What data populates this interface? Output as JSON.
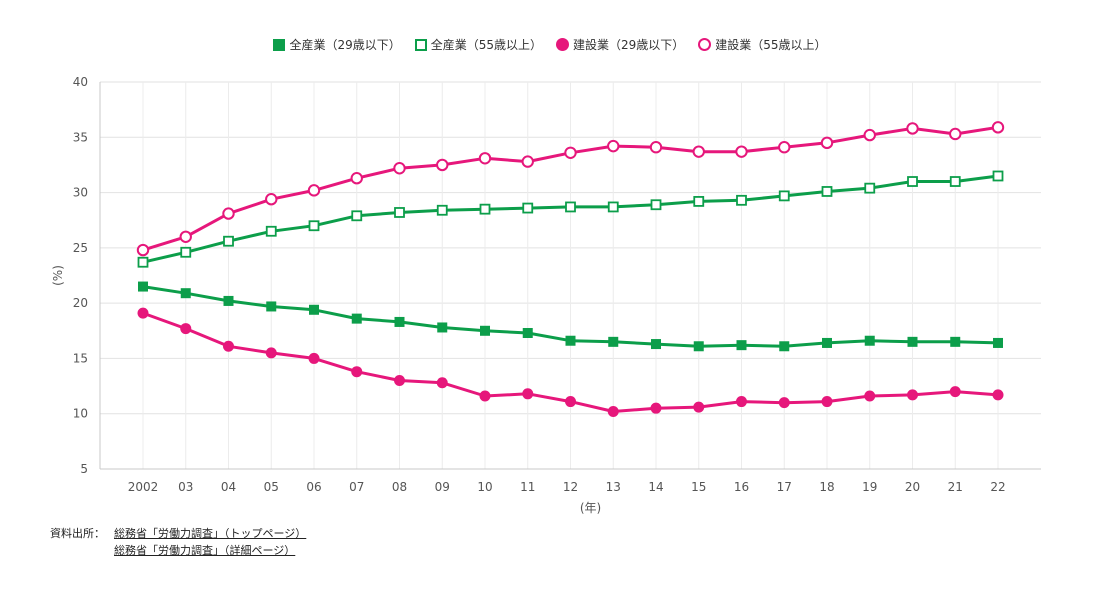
{
  "chart_data": {
    "type": "line",
    "categories": [
      "2002",
      "03",
      "04",
      "05",
      "06",
      "07",
      "08",
      "09",
      "10",
      "11",
      "12",
      "13",
      "14",
      "15",
      "16",
      "17",
      "18",
      "19",
      "20",
      "21",
      "22"
    ],
    "ylabel": "(%)",
    "xlabel": "(年)",
    "ylim": [
      5,
      40
    ],
    "yticks": [
      5,
      10,
      15,
      20,
      25,
      30,
      35,
      40
    ],
    "grid": true,
    "legend_position": "top-center",
    "series": [
      {
        "name": "全産業（29歳以下）",
        "color": "#0c9e4a",
        "marker": "square-filled",
        "values": [
          21.5,
          20.9,
          20.2,
          19.7,
          19.4,
          18.6,
          18.3,
          17.8,
          17.5,
          17.3,
          16.6,
          16.5,
          16.3,
          16.1,
          16.2,
          16.1,
          16.4,
          16.6,
          16.5,
          16.5,
          16.4
        ]
      },
      {
        "name": "全産業（55歳以上）",
        "color": "#0c9e4a",
        "marker": "square-open",
        "values": [
          23.7,
          24.6,
          25.6,
          26.5,
          27.0,
          27.9,
          28.2,
          28.4,
          28.5,
          28.6,
          28.7,
          28.7,
          28.9,
          29.2,
          29.3,
          29.7,
          30.1,
          30.4,
          31.0,
          31.0,
          31.5
        ]
      },
      {
        "name": "建設業（29歳以下）",
        "color": "#e6177b",
        "marker": "circle-filled",
        "values": [
          19.1,
          17.7,
          16.1,
          15.5,
          15.0,
          13.8,
          13.0,
          12.8,
          11.6,
          11.8,
          11.1,
          10.2,
          10.5,
          10.6,
          11.1,
          11.0,
          11.1,
          11.6,
          11.7,
          12.0,
          11.7
        ]
      },
      {
        "name": "建設業（55歳以上）",
        "color": "#e6177b",
        "marker": "circle-open",
        "values": [
          24.8,
          26.0,
          28.1,
          29.4,
          30.2,
          31.3,
          32.2,
          32.5,
          33.1,
          32.8,
          33.6,
          34.2,
          34.1,
          33.7,
          33.7,
          34.1,
          34.5,
          35.2,
          35.8,
          35.3,
          35.9
        ]
      }
    ]
  },
  "source": {
    "label": "資料出所：",
    "links": [
      "総務省「労働力調査」（トップページ）",
      "総務省「労働力調査」（詳細ページ）"
    ]
  }
}
